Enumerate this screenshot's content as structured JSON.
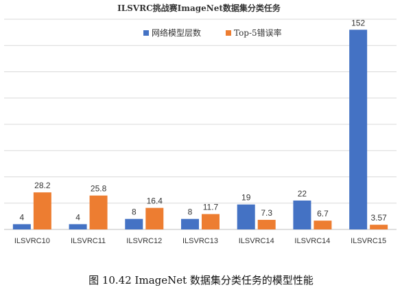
{
  "chart_data": {
    "type": "bar",
    "title": "ILSVRC挑战赛ImageNet数据集分类任务",
    "categories": [
      "ILSVRC10",
      "ILSVRC11",
      "ILSVRC12",
      "ILSVRC13",
      "ILSVRC14",
      "ILSVRC14",
      "ILSVRC15"
    ],
    "series": [
      {
        "name": "网络模型层数",
        "values": [
          4,
          4,
          8,
          8,
          19,
          22,
          152
        ],
        "color": "#4472C4"
      },
      {
        "name": "Top-5错误率",
        "values": [
          28.2,
          25.8,
          16.4,
          11.7,
          7.3,
          6.7,
          3.57
        ],
        "color": "#ED7D31"
      }
    ],
    "ylim": [
      0,
      160
    ],
    "grid": true,
    "legend_position": "top-right",
    "xlabel": "",
    "ylabel": ""
  },
  "caption": "图 10.42 ImageNet 数据集分类任务的模型性能"
}
